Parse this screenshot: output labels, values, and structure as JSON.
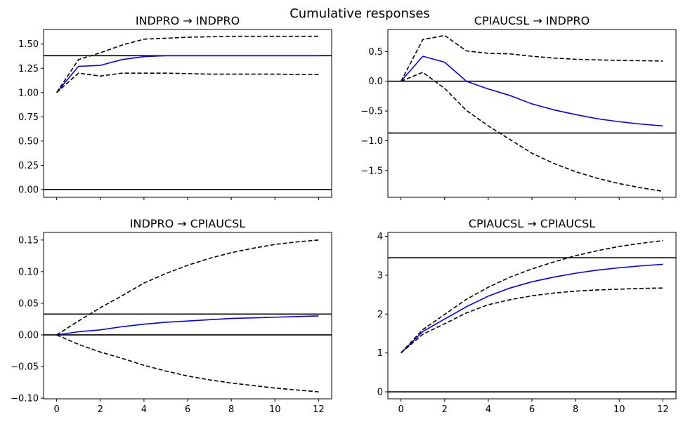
{
  "figure": {
    "suptitle": "Cumulative responses"
  },
  "chart_data": [
    {
      "type": "line",
      "title": "INDPRO → INDPRO",
      "xlabel": "",
      "ylabel": "",
      "x": [
        0,
        1,
        2,
        3,
        4,
        5,
        6,
        7,
        8,
        9,
        10,
        11,
        12
      ],
      "xlim": [
        -0.6,
        12.6
      ],
      "ylim": [
        -0.08,
        1.65
      ],
      "xticks": [
        0,
        2,
        4,
        6,
        8,
        10,
        12
      ],
      "show_xtick_labels": false,
      "yticks": [
        0.0,
        0.25,
        0.5,
        0.75,
        1.0,
        1.25,
        1.5
      ],
      "ytick_labels": [
        "0.00",
        "0.25",
        "0.50",
        "0.75",
        "1.00",
        "1.25",
        "1.50"
      ],
      "hlines": [
        0.0,
        1.38
      ],
      "series": [
        {
          "role": "response",
          "color": "#0000ff",
          "style": "solid",
          "values": [
            1.0,
            1.27,
            1.28,
            1.34,
            1.37,
            1.38,
            1.38,
            1.38,
            1.38,
            1.38,
            1.38,
            1.38,
            1.38
          ]
        },
        {
          "role": "upper-band",
          "color": "#000000",
          "style": "dashed",
          "values": [
            1.0,
            1.34,
            1.41,
            1.49,
            1.55,
            1.56,
            1.57,
            1.575,
            1.58,
            1.58,
            1.58,
            1.58,
            1.58
          ]
        },
        {
          "role": "lower-band",
          "color": "#000000",
          "style": "dashed",
          "values": [
            1.0,
            1.2,
            1.17,
            1.2,
            1.2,
            1.2,
            1.195,
            1.19,
            1.19,
            1.19,
            1.19,
            1.185,
            1.185
          ]
        }
      ]
    },
    {
      "type": "line",
      "title": "CPIAUCSL → INDPRO",
      "xlabel": "",
      "ylabel": "",
      "x": [
        0,
        1,
        2,
        3,
        4,
        5,
        6,
        7,
        8,
        9,
        10,
        11,
        12
      ],
      "xlim": [
        -0.6,
        12.6
      ],
      "ylim": [
        -1.95,
        0.87
      ],
      "xticks": [
        0,
        2,
        4,
        6,
        8,
        10,
        12
      ],
      "show_xtick_labels": false,
      "yticks": [
        -1.5,
        -1.0,
        -0.5,
        0.0,
        0.5
      ],
      "ytick_labels": [
        "−1.5",
        "−1.0",
        "−0.5",
        "0.0",
        "0.5"
      ],
      "hlines": [
        0.0,
        -0.87
      ],
      "series": [
        {
          "role": "response",
          "color": "#0000ff",
          "style": "solid",
          "values": [
            0.0,
            0.42,
            0.32,
            0.0,
            -0.13,
            -0.24,
            -0.38,
            -0.48,
            -0.56,
            -0.63,
            -0.68,
            -0.72,
            -0.75
          ]
        },
        {
          "role": "upper-band",
          "color": "#000000",
          "style": "dashed",
          "values": [
            0.0,
            0.7,
            0.77,
            0.51,
            0.47,
            0.46,
            0.42,
            0.39,
            0.37,
            0.36,
            0.35,
            0.345,
            0.34
          ]
        },
        {
          "role": "lower-band",
          "color": "#000000",
          "style": "dashed",
          "values": [
            0.0,
            0.15,
            -0.12,
            -0.49,
            -0.75,
            -0.98,
            -1.21,
            -1.38,
            -1.52,
            -1.63,
            -1.72,
            -1.79,
            -1.85
          ]
        }
      ]
    },
    {
      "type": "line",
      "title": "INDPRO → CPIAUCSL",
      "xlabel": "",
      "ylabel": "",
      "x": [
        0,
        1,
        2,
        3,
        4,
        5,
        6,
        7,
        8,
        9,
        10,
        11,
        12
      ],
      "xlim": [
        -0.6,
        12.6
      ],
      "ylim": [
        -0.101,
        0.162
      ],
      "xticks": [
        0,
        2,
        4,
        6,
        8,
        10,
        12
      ],
      "xtick_labels": [
        "0",
        "2",
        "4",
        "6",
        "8",
        "10",
        "12"
      ],
      "show_xtick_labels": true,
      "yticks": [
        -0.1,
        -0.05,
        0.0,
        0.05,
        0.1,
        0.15
      ],
      "ytick_labels": [
        "−0.10",
        "−0.05",
        "0.00",
        "0.05",
        "0.10",
        "0.15"
      ],
      "hlines": [
        0.0,
        0.033
      ],
      "series": [
        {
          "role": "response",
          "color": "#0000ff",
          "style": "solid",
          "values": [
            0.0,
            0.005,
            0.008,
            0.013,
            0.017,
            0.02,
            0.022,
            0.024,
            0.026,
            0.027,
            0.028,
            0.029,
            0.03
          ]
        },
        {
          "role": "upper-band",
          "color": "#000000",
          "style": "dashed",
          "values": [
            0.0,
            0.022,
            0.043,
            0.062,
            0.082,
            0.097,
            0.11,
            0.121,
            0.13,
            0.137,
            0.143,
            0.147,
            0.15
          ]
        },
        {
          "role": "lower-band",
          "color": "#000000",
          "style": "dashed",
          "values": [
            0.0,
            -0.015,
            -0.027,
            -0.037,
            -0.048,
            -0.057,
            -0.065,
            -0.071,
            -0.076,
            -0.08,
            -0.084,
            -0.087,
            -0.09
          ]
        }
      ]
    },
    {
      "type": "line",
      "title": "CPIAUCSL → CPIAUCSL",
      "xlabel": "",
      "ylabel": "",
      "x": [
        0,
        1,
        2,
        3,
        4,
        5,
        6,
        7,
        8,
        9,
        10,
        11,
        12
      ],
      "xlim": [
        -0.6,
        12.6
      ],
      "ylim": [
        -0.18,
        4.1
      ],
      "xticks": [
        0,
        2,
        4,
        6,
        8,
        10,
        12
      ],
      "xtick_labels": [
        "0",
        "2",
        "4",
        "6",
        "8",
        "10",
        "12"
      ],
      "show_xtick_labels": true,
      "yticks": [
        0,
        1,
        2,
        3,
        4
      ],
      "ytick_labels": [
        "0",
        "1",
        "2",
        "3",
        "4"
      ],
      "hlines": [
        0.0,
        3.45
      ],
      "series": [
        {
          "role": "response",
          "color": "#0000ff",
          "style": "solid",
          "values": [
            1.0,
            1.55,
            1.87,
            2.19,
            2.46,
            2.67,
            2.83,
            2.95,
            3.05,
            3.13,
            3.19,
            3.24,
            3.28
          ]
        },
        {
          "role": "upper-band",
          "color": "#000000",
          "style": "dashed",
          "values": [
            1.0,
            1.6,
            1.99,
            2.38,
            2.69,
            2.95,
            3.16,
            3.34,
            3.5,
            3.63,
            3.74,
            3.82,
            3.89
          ]
        },
        {
          "role": "lower-band",
          "color": "#000000",
          "style": "dashed",
          "values": [
            1.0,
            1.48,
            1.75,
            2.03,
            2.24,
            2.37,
            2.47,
            2.54,
            2.59,
            2.62,
            2.64,
            2.66,
            2.67
          ]
        }
      ]
    }
  ]
}
